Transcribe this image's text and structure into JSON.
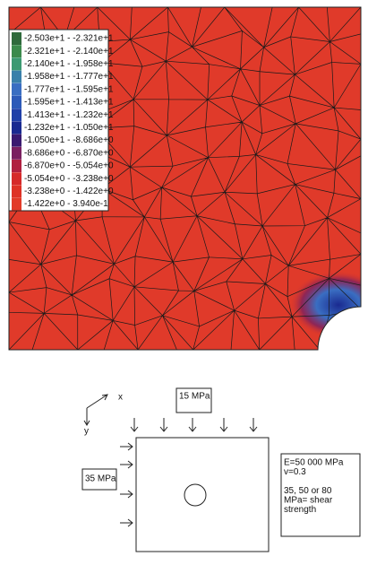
{
  "legend": {
    "items": [
      {
        "label": "-2.503e+1 - -2.321e+1",
        "color": "#2f6a3c"
      },
      {
        "label": "-2.321e+1 - -2.140e+1",
        "color": "#3b8a4c"
      },
      {
        "label": "-2.140e+1 - -1.958e+1",
        "color": "#3c9a72"
      },
      {
        "label": "-1.958e+1 - -1.777e+1",
        "color": "#3a80aa"
      },
      {
        "label": "-1.777e+1 - -1.595e+1",
        "color": "#3a6ec2"
      },
      {
        "label": "-1.595e+1 - -1.413e+1",
        "color": "#2d5ab8"
      },
      {
        "label": "-1.413e+1 - -1.232e+1",
        "color": "#2040a8"
      },
      {
        "label": "-1.232e+1 - -1.050e+1",
        "color": "#1a2a90"
      },
      {
        "label": "-1.050e+1 - -8.686e+0",
        "color": "#3a1a70"
      },
      {
        "label": "-8.686e+0 - -6.870e+0",
        "color": "#7a2060"
      },
      {
        "label": "-6.870e+0 - -5.054e+0",
        "color": "#b02040"
      },
      {
        "label": "-5.054e+0 - -3.238e+0",
        "color": "#d62a2a"
      },
      {
        "label": "-3.238e+0 - -1.422e+0",
        "color": "#de3226"
      },
      {
        "label": "-1.422e+0 - 3.940e-1",
        "color": "#e23a28"
      }
    ]
  },
  "diagram": {
    "axis_x": "x",
    "axis_y": "y",
    "top_load": "15 MPa",
    "side_load": "35 MPa",
    "properties": [
      "E=50 000 MPa",
      "v=0.3",
      "",
      "35, 50 or 80",
      "MPa= shear",
      "strength"
    ]
  }
}
